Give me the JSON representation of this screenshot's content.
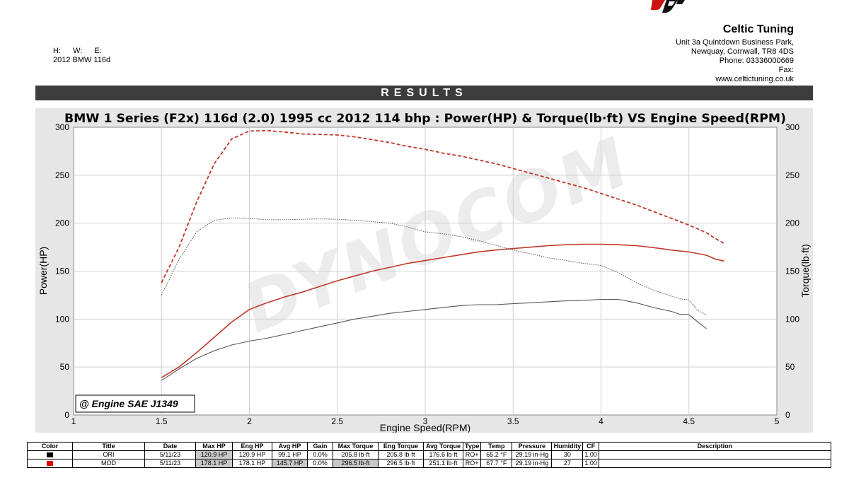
{
  "company": {
    "name": "Celtic Tuning",
    "address1": "Unit 3a Quintdown Business Park,",
    "address2": "Newquay, Cornwall, TR8 4DS",
    "phone": "Phone: 03336000669",
    "fax": "Fax:",
    "web": "www.celtictuning.co.uk"
  },
  "vehicle": {
    "h": "H:",
    "w": "W:",
    "e": "E:",
    "desc": "2012 BMW 116d"
  },
  "results_label": "RESULTS",
  "chart_data": {
    "type": "line",
    "title": "BMW 1 Series (F2x) 116d (2.0) 1995 cc 2012 114 bhp : Power(HP) & Torque(lb·ft) VS Engine Speed(RPM)",
    "xlabel": "Engine Speed(RPM)",
    "ylabel": "Power(HP)",
    "y2label": "Torque(lb·ft)",
    "xlim": [
      1,
      5
    ],
    "ylim": [
      0,
      300
    ],
    "y2lim": [
      0,
      300
    ],
    "xticks": [
      "1",
      "1.5",
      "2",
      "2.5",
      "3",
      "3.5",
      "4",
      "4.5",
      "5"
    ],
    "yticks": [
      "0",
      "50",
      "100",
      "150",
      "200",
      "250",
      "300"
    ],
    "grid": true,
    "watermark": "DYNOCOM",
    "annotation": "@ Engine SAE J1349",
    "series": [
      {
        "name": "ORI",
        "measure": "power",
        "color": "#555555",
        "style": "solid",
        "x": [
          1.5,
          1.6,
          1.7,
          1.8,
          1.9,
          2.0,
          2.1,
          2.2,
          2.3,
          2.4,
          2.5,
          2.6,
          2.7,
          2.8,
          2.9,
          3.0,
          3.1,
          3.2,
          3.3,
          3.4,
          3.5,
          3.6,
          3.7,
          3.8,
          3.9,
          4.0,
          4.1,
          4.2,
          4.3,
          4.4,
          4.45,
          4.5,
          4.55,
          4.6
        ],
        "y": [
          36,
          48,
          59,
          67,
          73,
          77,
          80,
          84,
          88,
          92,
          96,
          100,
          103,
          106,
          108,
          110,
          112,
          114,
          115,
          115,
          116,
          117,
          118,
          119,
          119.5,
          120.5,
          120.5,
          117,
          112,
          108,
          105,
          104.5,
          97,
          90
        ]
      },
      {
        "name": "MOD",
        "measure": "power",
        "color": "#c0392b",
        "style": "solid",
        "x": [
          1.5,
          1.6,
          1.7,
          1.8,
          1.9,
          2.0,
          2.1,
          2.2,
          2.3,
          2.4,
          2.5,
          2.6,
          2.7,
          2.8,
          2.9,
          3.0,
          3.1,
          3.2,
          3.3,
          3.4,
          3.5,
          3.6,
          3.7,
          3.8,
          3.9,
          4.0,
          4.1,
          4.2,
          4.3,
          4.4,
          4.5,
          4.6,
          4.65,
          4.7
        ],
        "y": [
          39,
          50,
          65,
          81,
          97,
          110,
          117,
          123,
          128,
          134,
          140,
          145,
          150,
          154,
          158,
          161,
          164,
          167,
          170,
          172,
          173.5,
          175,
          176.5,
          177.5,
          178,
          178,
          177.5,
          176.5,
          174.5,
          172,
          170,
          166.5,
          162.5,
          160.5
        ]
      },
      {
        "name": "ORI",
        "measure": "torque",
        "color": "#555555",
        "style": "dotted",
        "x": [
          1.5,
          1.6,
          1.7,
          1.8,
          1.9,
          2.0,
          2.1,
          2.2,
          2.3,
          2.4,
          2.5,
          2.6,
          2.7,
          2.8,
          2.9,
          3.0,
          3.1,
          3.2,
          3.3,
          3.4,
          3.5,
          3.6,
          3.7,
          3.8,
          3.9,
          4.0,
          4.1,
          4.2,
          4.3,
          4.4,
          4.45,
          4.5,
          4.55,
          4.6
        ],
        "y": [
          125,
          162,
          191,
          203,
          205.5,
          205,
          203.5,
          203.5,
          204,
          204.5,
          204,
          203,
          201.5,
          200,
          196,
          191,
          189,
          186,
          182,
          177,
          172,
          168,
          164,
          161,
          158,
          156,
          148,
          138,
          130,
          124,
          121,
          120,
          109,
          104
        ]
      },
      {
        "name": "MOD",
        "measure": "torque",
        "color": "#c0392b",
        "style": "dashed",
        "x": [
          1.5,
          1.6,
          1.7,
          1.8,
          1.9,
          2.0,
          2.1,
          2.2,
          2.3,
          2.4,
          2.5,
          2.6,
          2.7,
          2.8,
          2.9,
          3.0,
          3.1,
          3.2,
          3.3,
          3.4,
          3.5,
          3.6,
          3.7,
          3.8,
          3.9,
          4.0,
          4.1,
          4.2,
          4.3,
          4.4,
          4.5,
          4.6,
          4.65,
          4.7
        ],
        "y": [
          138,
          175,
          222,
          262,
          288,
          296,
          296.5,
          295,
          293,
          292.5,
          292,
          290,
          287,
          284,
          280,
          277,
          273,
          270,
          266,
          262,
          257,
          252,
          247,
          242,
          237,
          231,
          225,
          219,
          212,
          205,
          198,
          190,
          184,
          179
        ]
      }
    ]
  },
  "table": {
    "headers": [
      "Color",
      "Title",
      "Date",
      "Max HP",
      "Eng HP",
      "Avg HP",
      "Gain",
      "Max Torque",
      "Eng Torque",
      "Avg Torque",
      "Type",
      "Temp",
      "Pressure",
      "Humidity",
      "CF",
      "Description"
    ],
    "rows": [
      {
        "color": "#000000",
        "cells": [
          "ORI",
          "5/11/23",
          "120.9 HP",
          "120.9 HP",
          "99.1 HP",
          "0.0%",
          "205.8 lb·ft",
          "205.8 lb·ft",
          "176.6 lb·ft",
          "RO+",
          "65.2 °F",
          "29.19 in·Hg",
          "30",
          "1.00",
          ""
        ]
      },
      {
        "color": "#e00000",
        "cells": [
          "MOD",
          "5/11/23",
          "178.1 HP",
          "178.1 HP",
          "145.7 HP",
          "0.0%",
          "296.5 lb·ft",
          "296.5 lb·ft",
          "251.1 lb·ft",
          "RO+",
          "67.7 °F",
          "29.19 in·Hg",
          "27",
          "1.00",
          ""
        ]
      }
    ]
  }
}
